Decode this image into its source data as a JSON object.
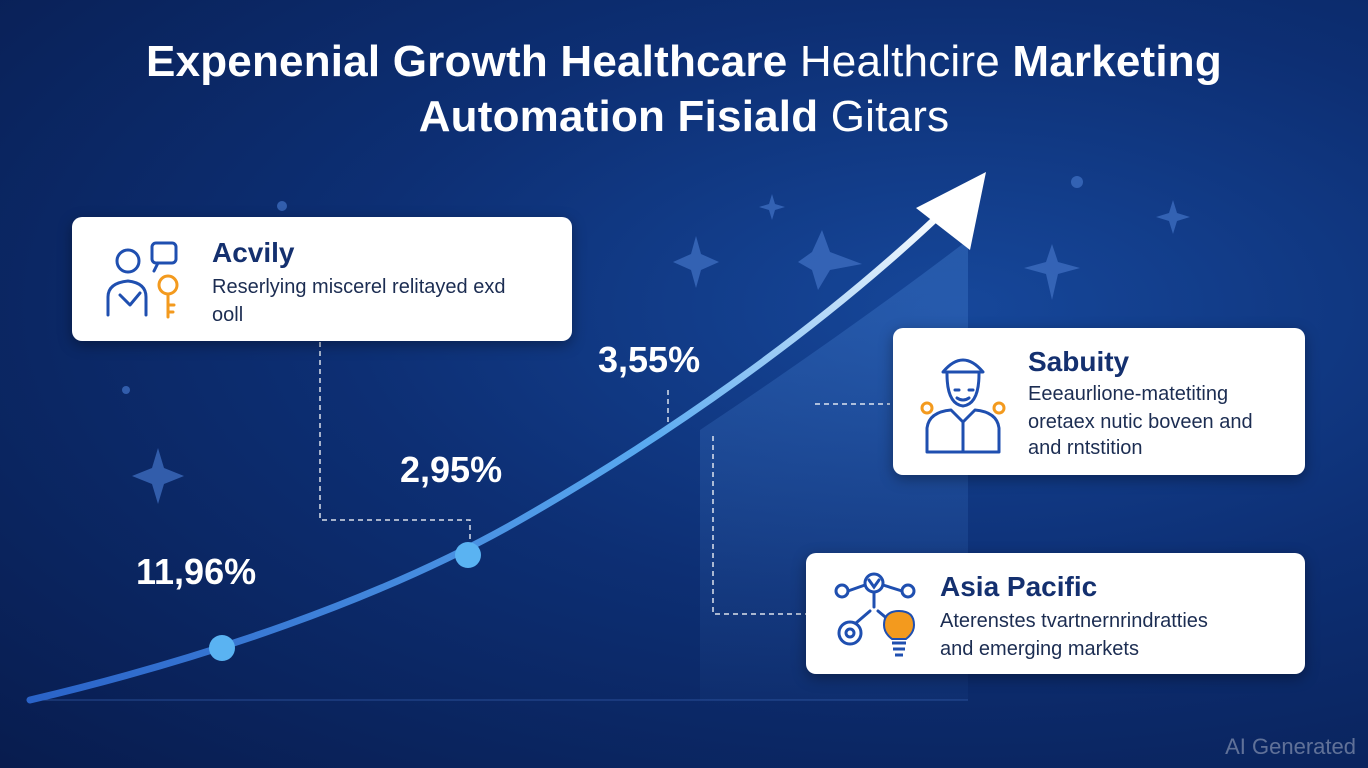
{
  "title": {
    "line1_bold_a": "Expenenial Growth Healthcare",
    "line1_light": "Healthcire",
    "line1_bold_b": "Marketing",
    "line2_bold": "Automation Fisiald",
    "line2_light": "Gitars"
  },
  "chart_data": {
    "type": "line",
    "title": "Expenenial Growth Healthcare Healthcire Marketing Automation Fisiald Gitars",
    "series": [
      {
        "labels": [
          "11,96%",
          "2,95%",
          "3,55%"
        ],
        "points_shown": 2
      }
    ],
    "trend": "exponential",
    "arrow": true
  },
  "cards": [
    {
      "title": "Acvily",
      "lines": [
        "Reserlying miscerel relitayed exd",
        "ooll"
      ],
      "icon": "people-key-icon"
    },
    {
      "title": "Sabuity",
      "lines": [
        "Eeeaurlione-matetiting",
        "oretaex nutic boveen and",
        "and rntstition"
      ],
      "icon": "worker-icon"
    },
    {
      "title": "Asia Pacific",
      "lines": [
        "Aterenstes tvartnernrindratties",
        "and emerging markets"
      ],
      "icon": "network-bulb-icon"
    }
  ],
  "watermark": "AI Generated",
  "colors": {
    "background": "#0d2f74",
    "curve": "#5aaaf0",
    "card": "#ffffff",
    "card_title": "#14306f",
    "accent_orange": "#f39a1e"
  }
}
